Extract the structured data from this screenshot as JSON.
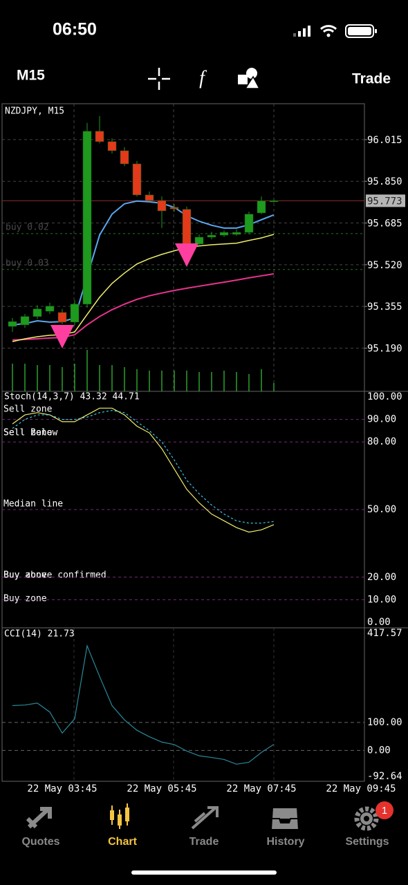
{
  "status": {
    "time": "06:50"
  },
  "toolbar": {
    "timeframe": "M15",
    "trade": "Trade"
  },
  "price_chart": {
    "symbol": "NZDJPY, M15",
    "ylim": [
      95.019,
      96.157
    ],
    "yticks": [
      96.015,
      {
        "value": 95.85,
        "label": "95.850"
      },
      95.685,
      {
        "value": 95.52,
        "label": "95.520"
      },
      95.355,
      {
        "value": 95.19,
        "label": "95.190"
      }
    ],
    "current_price": 95.773,
    "orders": [
      {
        "label": "buy 0.02",
        "price": 95.643
      },
      {
        "label": "buy 0.03",
        "price": 95.501
      }
    ],
    "candles": [
      [
        95.276,
        95.309,
        95.254,
        95.295
      ],
      [
        95.282,
        95.325,
        95.27,
        95.315
      ],
      [
        95.315,
        95.36,
        95.305,
        95.345
      ],
      [
        95.336,
        95.37,
        95.325,
        95.356
      ],
      [
        95.331,
        95.345,
        95.285,
        95.293
      ],
      [
        95.293,
        95.38,
        95.28,
        95.364
      ],
      [
        95.364,
        96.081,
        95.35,
        96.048
      ],
      [
        96.048,
        96.108,
        96.0,
        96.007
      ],
      [
        96.007,
        96.02,
        95.96,
        95.971
      ],
      [
        95.971,
        95.985,
        95.91,
        95.919
      ],
      [
        95.919,
        95.93,
        95.79,
        95.796
      ],
      [
        95.796,
        95.81,
        95.77,
        95.774
      ],
      [
        95.774,
        95.79,
        95.665,
        95.733
      ],
      [
        95.747,
        95.76,
        95.73,
        95.741
      ],
      [
        95.739,
        95.75,
        95.59,
        95.596
      ],
      [
        95.602,
        95.64,
        95.595,
        95.629
      ],
      [
        95.629,
        95.65,
        95.62,
        95.637
      ],
      [
        95.637,
        95.655,
        95.63,
        95.648
      ],
      [
        95.64,
        95.66,
        95.635,
        95.648
      ],
      [
        95.648,
        95.73,
        95.64,
        95.72
      ],
      [
        95.725,
        95.79,
        95.72,
        95.772
      ],
      [
        95.772,
        95.778,
        95.766,
        95.773
      ]
    ],
    "ma_fast": [
      95.282,
      95.287,
      95.298,
      95.293,
      95.295,
      95.309,
      95.473,
      95.637,
      95.72,
      95.761,
      95.772,
      95.769,
      95.763,
      95.747,
      95.714,
      95.692,
      95.676,
      95.665,
      95.665,
      95.678,
      95.698,
      95.717
    ],
    "ma_mid": [
      95.216,
      95.227,
      95.235,
      95.241,
      95.243,
      95.254,
      95.323,
      95.391,
      95.446,
      95.487,
      95.523,
      95.544,
      95.561,
      95.575,
      95.588,
      95.594,
      95.599,
      95.602,
      95.605,
      95.616,
      95.626,
      95.64
    ],
    "ma_slow": [
      95.222,
      95.224,
      95.227,
      95.23,
      95.232,
      95.243,
      95.282,
      95.315,
      95.342,
      95.364,
      95.383,
      95.397,
      95.408,
      95.418,
      95.427,
      95.435,
      95.443,
      95.451,
      95.459,
      95.468,
      95.476,
      95.484
    ],
    "volumes": [
      40,
      40,
      38,
      38,
      35,
      40,
      60,
      38,
      38,
      35,
      32,
      30,
      30,
      30,
      30,
      28,
      28,
      30,
      28,
      25,
      32,
      12
    ]
  },
  "stochastic": {
    "title": "Stoch(14,3,7) 43.32 44.71",
    "ylim": [
      0,
      100
    ],
    "yticks": [
      {
        "value": 100,
        "label": "100.00"
      },
      {
        "value": 90,
        "label": "90.00"
      },
      {
        "value": 80,
        "label": "80.00"
      },
      {
        "value": 50,
        "label": "50.00"
      },
      {
        "value": 20,
        "label": "20.00"
      },
      {
        "value": 10,
        "label": "10.00"
      },
      {
        "value": 0,
        "label": "0.00"
      }
    ],
    "zone_labels": [
      "Sell zone",
      "Sell Below",
      "Sell zone",
      "Median line",
      "Buy above confirmed",
      "Buy zone",
      "Buy zone"
    ],
    "main": [
      88,
      92,
      93,
      92,
      89,
      89,
      92,
      95,
      95,
      92,
      87,
      84,
      77,
      68,
      59,
      53,
      48,
      45,
      42,
      40,
      41,
      43.32
    ],
    "signal": [
      86,
      90,
      92,
      92,
      90,
      90,
      91,
      93,
      94,
      93,
      89,
      85,
      80,
      72,
      63,
      57,
      52,
      48,
      45,
      44,
      44,
      44.71
    ]
  },
  "cci": {
    "title": "CCI(14) 21.73",
    "ylim": [
      -92.64,
      417.57
    ],
    "yticks": [
      {
        "value": 417.57,
        "label": "417.57"
      },
      {
        "value": 100,
        "label": "100.00"
      },
      {
        "value": 0,
        "label": "0.00"
      },
      -92.64
    ],
    "values": [
      160,
      162,
      169,
      137,
      62,
      113,
      373,
      264,
      160,
      109,
      72,
      49,
      30,
      21,
      -2,
      -19,
      -25,
      -32,
      -49,
      -42,
      -7,
      21.73
    ]
  },
  "time_axis": [
    "22 May 03:45",
    "22 May 05:45",
    "22 May 07:45",
    "22 May 09:45"
  ],
  "tabs": [
    "Quotes",
    "Chart",
    "Trade",
    "History",
    "Settings"
  ],
  "badge": "1"
}
